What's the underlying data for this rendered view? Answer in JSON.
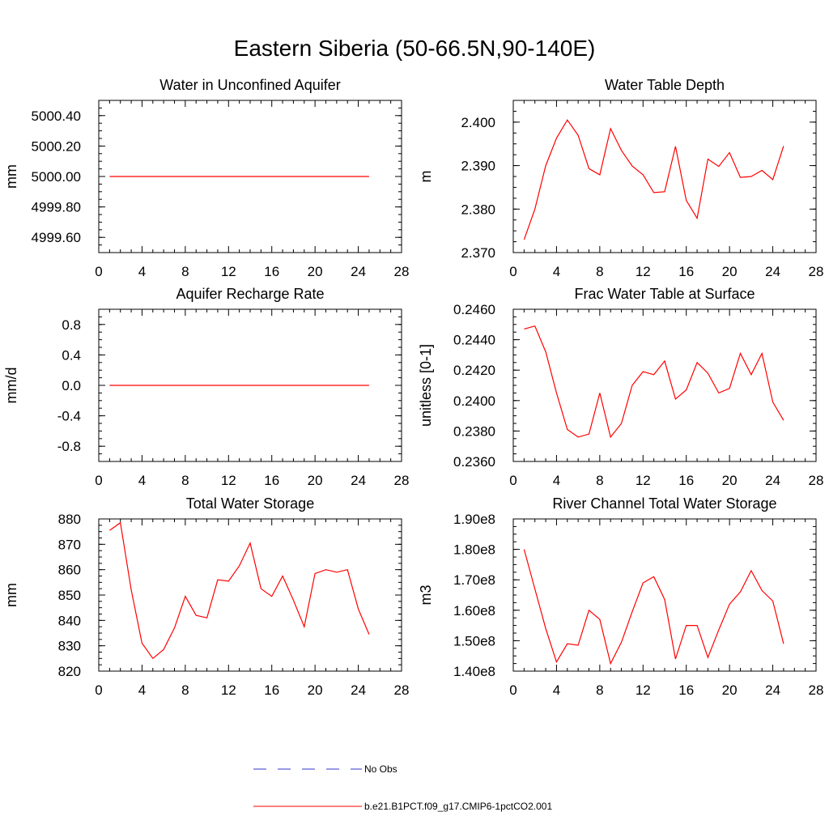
{
  "figure": {
    "title": "Eastern Siberia (50-66.5N,90-140E)"
  },
  "legend": [
    {
      "label": "No Obs",
      "color": "#3333cc",
      "style": "dashed"
    },
    {
      "label": "b.e21.B1PCT.f09_g17.CMIP6-1pctCO2.001",
      "color": "#ff0000",
      "style": "solid"
    }
  ],
  "chart_data": [
    {
      "type": "line",
      "title": "Water in Unconfined Aquifer",
      "ylabel": "mm",
      "xlim": [
        0,
        28
      ],
      "xticks": [
        0,
        4,
        8,
        12,
        16,
        20,
        24,
        28
      ],
      "ylim": [
        4999.5,
        5000.5
      ],
      "yticks": [
        4999.6,
        4999.8,
        5000.0,
        5000.2,
        5000.4
      ],
      "ytick_labels": [
        "4999.60",
        "4999.80",
        "5000.00",
        "5000.20",
        "5000.40"
      ],
      "series": [
        {
          "color": "#ff0000",
          "x": [
            1,
            2,
            3,
            4,
            5,
            6,
            7,
            8,
            9,
            10,
            11,
            12,
            13,
            14,
            15,
            16,
            17,
            18,
            19,
            20,
            21,
            22,
            23,
            24,
            25
          ],
          "y": [
            5000,
            5000,
            5000,
            5000,
            5000,
            5000,
            5000,
            5000,
            5000,
            5000,
            5000,
            5000,
            5000,
            5000,
            5000,
            5000,
            5000,
            5000,
            5000,
            5000,
            5000,
            5000,
            5000,
            5000,
            5000
          ]
        }
      ]
    },
    {
      "type": "line",
      "title": "Water Table Depth",
      "ylabel": "m",
      "xlim": [
        0,
        28
      ],
      "xticks": [
        0,
        4,
        8,
        12,
        16,
        20,
        24,
        28
      ],
      "ylim": [
        2.37,
        2.405
      ],
      "yticks": [
        2.37,
        2.38,
        2.39,
        2.4
      ],
      "ytick_labels": [
        "2.370",
        "2.380",
        "2.390",
        "2.400"
      ],
      "series": [
        {
          "color": "#ff0000",
          "x": [
            1,
            2,
            3,
            4,
            5,
            6,
            7,
            8,
            9,
            10,
            11,
            12,
            13,
            14,
            15,
            16,
            17,
            18,
            19,
            20,
            21,
            22,
            23,
            24,
            25
          ],
          "y": [
            2.373,
            2.38,
            2.39,
            2.3963,
            2.4005,
            2.397,
            2.3893,
            2.3879,
            2.3985,
            2.3935,
            2.3899,
            2.3879,
            2.3838,
            2.384,
            2.3944,
            2.382,
            2.3779,
            2.3915,
            2.3898,
            2.393,
            2.3873,
            2.3875,
            2.3889,
            2.3868,
            2.3945
          ]
        }
      ]
    },
    {
      "type": "line",
      "title": "Aquifer Recharge Rate",
      "ylabel": "mm/d",
      "xlim": [
        0,
        28
      ],
      "xticks": [
        0,
        4,
        8,
        12,
        16,
        20,
        24,
        28
      ],
      "ylim": [
        -1.0,
        1.0
      ],
      "yticks": [
        -0.8,
        -0.4,
        0.0,
        0.4,
        0.8
      ],
      "ytick_labels": [
        "-0.8",
        "-0.4",
        "0.0",
        "0.4",
        "0.8"
      ],
      "series": [
        {
          "color": "#ff0000",
          "x": [
            1,
            2,
            3,
            4,
            5,
            6,
            7,
            8,
            9,
            10,
            11,
            12,
            13,
            14,
            15,
            16,
            17,
            18,
            19,
            20,
            21,
            22,
            23,
            24,
            25
          ],
          "y": [
            0,
            0,
            0,
            0,
            0,
            0,
            0,
            0,
            0,
            0,
            0,
            0,
            0,
            0,
            0,
            0,
            0,
            0,
            0,
            0,
            0,
            0,
            0,
            0,
            0
          ]
        }
      ]
    },
    {
      "type": "line",
      "title": "Frac Water Table at Surface",
      "ylabel": "unitless [0-1]",
      "xlim": [
        0,
        28
      ],
      "xticks": [
        0,
        4,
        8,
        12,
        16,
        20,
        24,
        28
      ],
      "ylim": [
        0.236,
        0.246
      ],
      "yticks": [
        0.236,
        0.238,
        0.24,
        0.242,
        0.244,
        0.246
      ],
      "ytick_labels": [
        "0.2360",
        "0.2380",
        "0.2400",
        "0.2420",
        "0.2440",
        "0.2460"
      ],
      "series": [
        {
          "color": "#ff0000",
          "x": [
            1,
            2,
            3,
            4,
            5,
            6,
            7,
            8,
            9,
            10,
            11,
            12,
            13,
            14,
            15,
            16,
            17,
            18,
            19,
            20,
            21,
            22,
            23,
            24,
            25
          ],
          "y": [
            0.2447,
            0.2449,
            0.2432,
            0.2405,
            0.2381,
            0.2376,
            0.2378,
            0.2405,
            0.2376,
            0.2385,
            0.241,
            0.2419,
            0.2417,
            0.2426,
            0.2401,
            0.2407,
            0.2425,
            0.2418,
            0.2405,
            0.2408,
            0.2431,
            0.2417,
            0.2431,
            0.2399,
            0.2387
          ]
        }
      ]
    },
    {
      "type": "line",
      "title": "Total Water Storage",
      "ylabel": "mm",
      "xlim": [
        0,
        28
      ],
      "xticks": [
        0,
        4,
        8,
        12,
        16,
        20,
        24,
        28
      ],
      "ylim": [
        820,
        880
      ],
      "yticks": [
        820,
        830,
        840,
        850,
        860,
        870,
        880
      ],
      "ytick_labels": [
        "820",
        "830",
        "840",
        "850",
        "860",
        "870",
        "880"
      ],
      "series": [
        {
          "color": "#ff0000",
          "x": [
            1,
            2,
            3,
            4,
            5,
            6,
            7,
            8,
            9,
            10,
            11,
            12,
            13,
            14,
            15,
            16,
            17,
            18,
            19,
            20,
            21,
            22,
            23,
            24,
            25
          ],
          "y": [
            875.5,
            878.5,
            852,
            831,
            825,
            828.5,
            837,
            849.5,
            842,
            841,
            856,
            855.5,
            861.5,
            870.5,
            852.5,
            849.5,
            857.5,
            848,
            837.5,
            858.5,
            860,
            859,
            860,
            844.5,
            834.5
          ]
        }
      ]
    },
    {
      "type": "line",
      "title": "River Channel Total Water Storage",
      "ylabel": "m3",
      "xlim": [
        0,
        28
      ],
      "xticks": [
        0,
        4,
        8,
        12,
        16,
        20,
        24,
        28
      ],
      "ylim": [
        140000000,
        190000000
      ],
      "yticks": [
        140000000,
        150000000,
        160000000,
        170000000,
        180000000,
        190000000
      ],
      "ytick_labels": [
        "1.40e8",
        "1.50e8",
        "1.60e8",
        "1.70e8",
        "1.80e8",
        "1.90e8"
      ],
      "series": [
        {
          "color": "#ff0000",
          "x": [
            1,
            2,
            3,
            4,
            5,
            6,
            7,
            8,
            9,
            10,
            11,
            12,
            13,
            14,
            15,
            16,
            17,
            18,
            19,
            20,
            21,
            22,
            23,
            24,
            25
          ],
          "y": [
            180000000,
            167000000,
            154000000,
            143000000,
            149000000,
            148500000,
            160000000,
            157000000,
            142500000,
            149500000,
            159500000,
            169000000,
            171000000,
            163500000,
            144000000,
            155000000,
            155000000,
            144500000,
            153500000,
            162000000,
            166000000,
            173000000,
            166500000,
            163000000,
            149000000
          ]
        }
      ]
    }
  ]
}
